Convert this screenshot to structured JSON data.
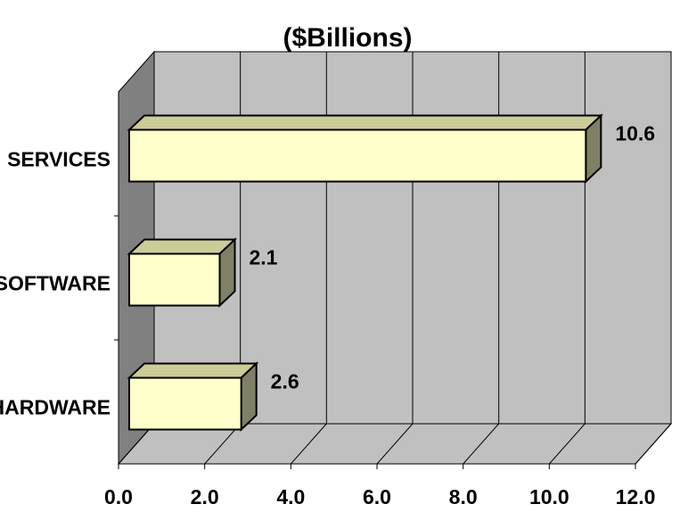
{
  "chart_data": {
    "type": "bar",
    "orientation": "horizontal",
    "title": "($Billions)",
    "categories": [
      "SERVICES",
      "SOFTWARE",
      "HARDWARE"
    ],
    "values": [
      10.6,
      2.1,
      2.6
    ],
    "value_labels": [
      "10.6",
      "2.1",
      "2.6"
    ],
    "xlim": [
      0,
      12
    ],
    "x_ticks": [
      "0.0",
      "2.0",
      "4.0",
      "6.0",
      "8.0",
      "10.0",
      "12.0"
    ],
    "xlabel": "",
    "ylabel": "",
    "grid": true,
    "legend": "none",
    "style": "3d",
    "colors": {
      "bar_front": "#ffffcc",
      "bar_top": "#cccc99",
      "bar_side": "#808066",
      "wall": "#c0c0c0",
      "left_wall": "#808080",
      "floor": "#c0c0c0"
    }
  }
}
